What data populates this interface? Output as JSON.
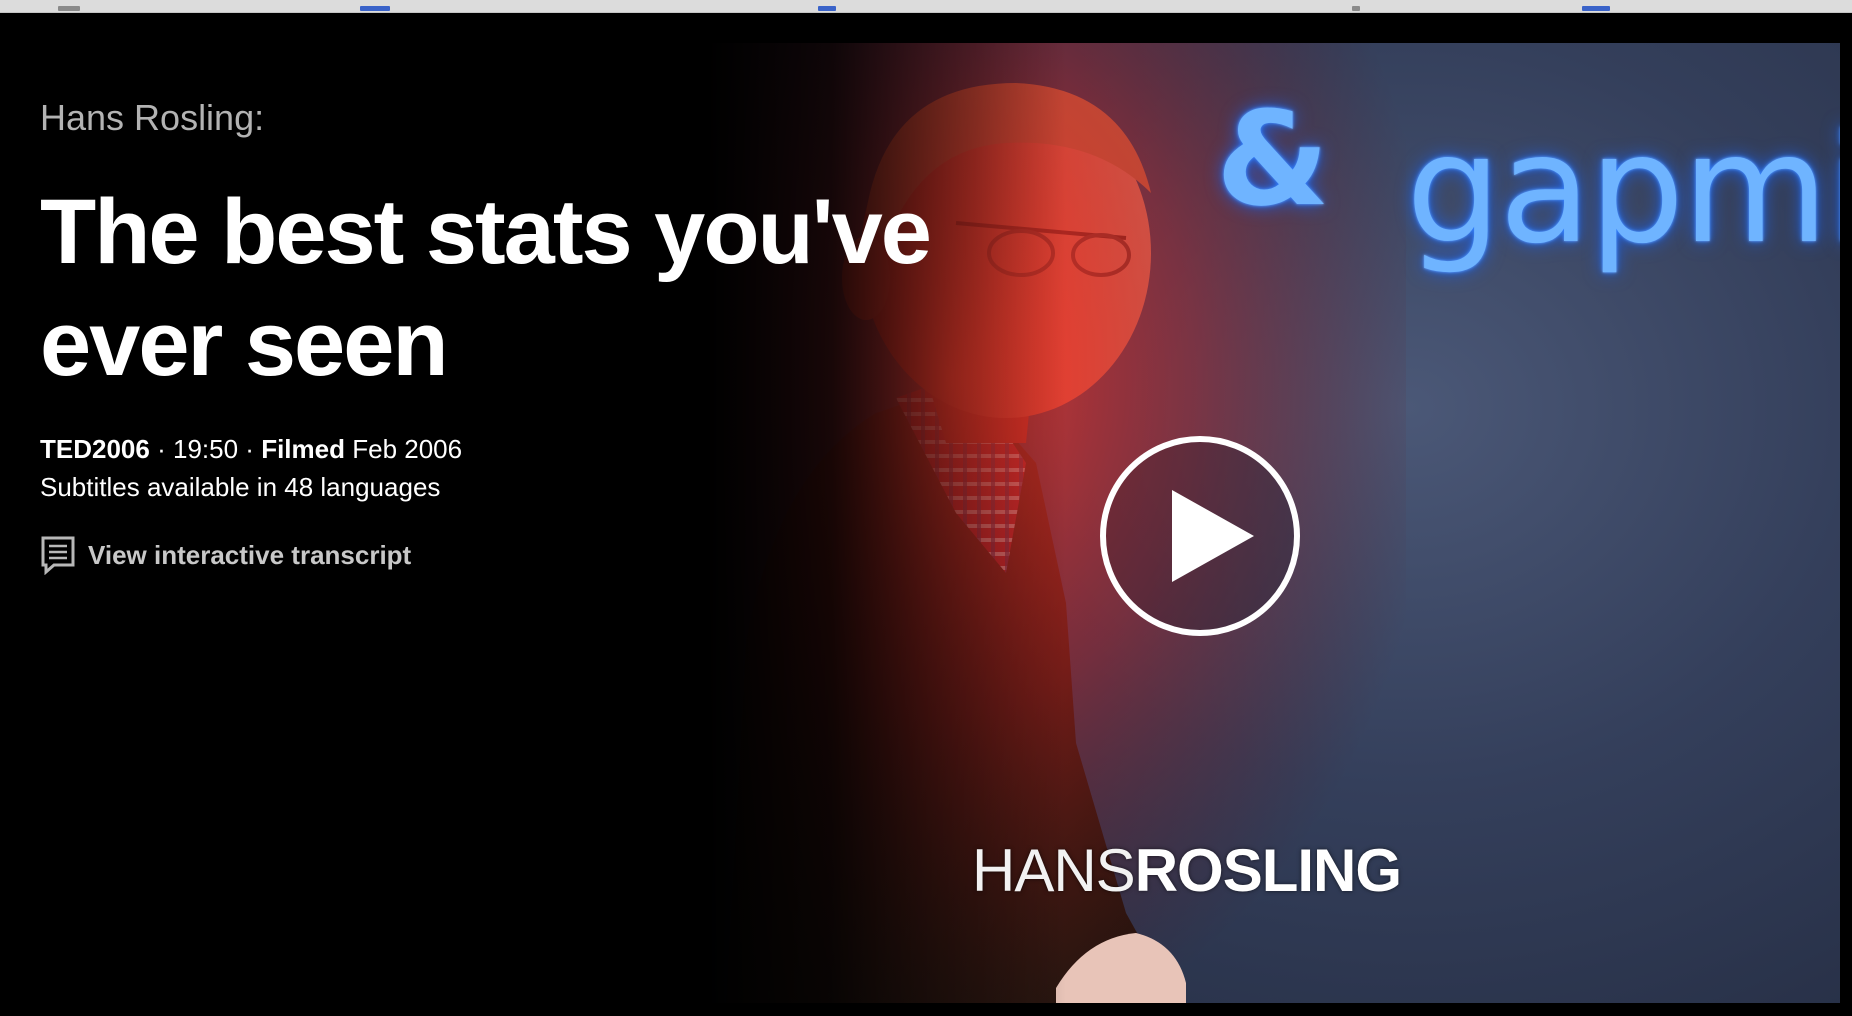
{
  "talk": {
    "speaker_label": "Hans Rosling:",
    "title": "The best stats you've ever seen",
    "event": "TED2006",
    "separator": "·",
    "duration": "19:50",
    "filmed_label": "Filmed",
    "filmed_date": "Feb 2006",
    "subtitles_text": "Subtitles available in 48 languages"
  },
  "transcript": {
    "icon": "transcript-icon",
    "label": "View interactive transcript"
  },
  "video": {
    "screen_amp": "&",
    "screen_word": "gapmind",
    "name_light": "HANS",
    "name_bold": "ROSLING",
    "play_icon": "play-icon"
  },
  "colors": {
    "background": "#000000",
    "speaker_label": "#b3b3b3",
    "title": "#ffffff",
    "link": "#c8c8c8",
    "screen_glow": "#6fb4ff"
  }
}
